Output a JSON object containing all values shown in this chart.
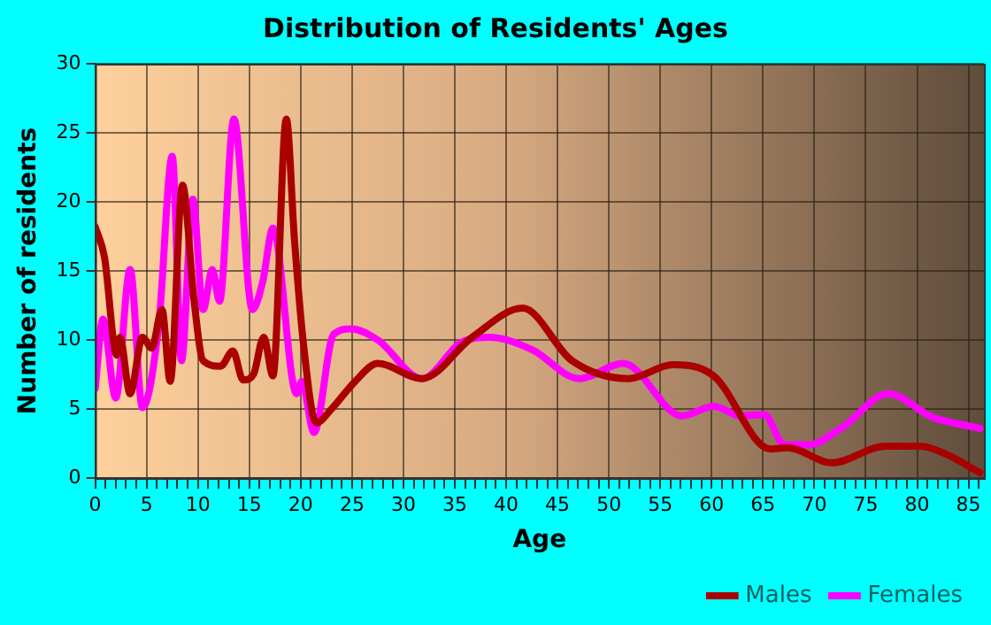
{
  "chart_data": {
    "type": "line",
    "title": "Distribution of Residents' Ages",
    "xlabel": "Age",
    "ylabel": "Number of residents",
    "xlim": [
      0,
      86.5
    ],
    "ylim": [
      0,
      30
    ],
    "xticks": [
      0,
      {
        "value": 1,
        "label": null
      },
      {
        "value": 2,
        "label": null
      },
      {
        "value": 3,
        "label": null
      },
      {
        "value": 4,
        "label": null
      },
      5,
      {
        "value": 6,
        "label": null
      },
      {
        "value": 7,
        "label": null
      },
      {
        "value": 8,
        "label": null
      },
      {
        "value": 9,
        "label": null
      },
      10,
      {
        "value": 11,
        "label": null
      },
      {
        "value": 12,
        "label": null
      },
      {
        "value": 13,
        "label": null
      },
      {
        "value": 14,
        "label": null
      },
      15,
      {
        "value": 16,
        "label": null
      },
      {
        "value": 17,
        "label": null
      },
      {
        "value": 18,
        "label": null
      },
      {
        "value": 19,
        "label": null
      },
      20,
      {
        "value": 21,
        "label": null
      },
      {
        "value": 22,
        "label": null
      },
      {
        "value": 23,
        "label": null
      },
      {
        "value": 24,
        "label": null
      },
      25,
      {
        "value": 26,
        "label": null
      },
      {
        "value": 27,
        "label": null
      },
      {
        "value": 28,
        "label": null
      },
      {
        "value": 29,
        "label": null
      },
      30,
      {
        "value": 31,
        "label": null
      },
      {
        "value": 32,
        "label": null
      },
      {
        "value": 33,
        "label": null
      },
      {
        "value": 34,
        "label": null
      },
      35,
      {
        "value": 36,
        "label": null
      },
      {
        "value": 37,
        "label": null
      },
      {
        "value": 38,
        "label": null
      },
      {
        "value": 39,
        "label": null
      },
      40,
      {
        "value": 41,
        "label": null
      },
      {
        "value": 42,
        "label": null
      },
      {
        "value": 43,
        "label": null
      },
      {
        "value": 44,
        "label": null
      },
      45,
      {
        "value": 46,
        "label": null
      },
      {
        "value": 47,
        "label": null
      },
      {
        "value": 48,
        "label": null
      },
      {
        "value": 49,
        "label": null
      },
      50,
      {
        "value": 51,
        "label": null
      },
      {
        "value": 52,
        "label": null
      },
      {
        "value": 53,
        "label": null
      },
      {
        "value": 54,
        "label": null
      },
      55,
      {
        "value": 56,
        "label": null
      },
      {
        "value": 57,
        "label": null
      },
      {
        "value": 58,
        "label": null
      },
      {
        "value": 59,
        "label": null
      },
      60,
      {
        "value": 61,
        "label": null
      },
      {
        "value": 62,
        "label": null
      },
      {
        "value": 63,
        "label": null
      },
      {
        "value": 64,
        "label": null
      },
      65,
      {
        "value": 66,
        "label": null
      },
      {
        "value": 67,
        "label": null
      },
      {
        "value": 68,
        "label": null
      },
      {
        "value": 69,
        "label": null
      },
      70,
      {
        "value": 71,
        "label": null
      },
      {
        "value": 72,
        "label": null
      },
      {
        "value": 73,
        "label": null
      },
      {
        "value": 74,
        "label": null
      },
      75,
      {
        "value": 76,
        "label": null
      },
      {
        "value": 77,
        "label": null
      },
      {
        "value": 78,
        "label": null
      },
      {
        "value": 79,
        "label": null
      },
      80,
      {
        "value": 81,
        "label": null
      },
      {
        "value": 82,
        "label": null
      },
      {
        "value": 83,
        "label": null
      },
      {
        "value": 84,
        "label": null
      },
      85,
      {
        "value": 86,
        "label": null
      }
    ],
    "yticks": [
      0,
      5,
      10,
      15,
      20,
      25,
      30
    ],
    "grid": true,
    "legend": "bottom right",
    "marker": "none",
    "line_style": "solid",
    "series": [
      {
        "name": "Males",
        "color": "#aa0000",
        "x": [
          0,
          0.9,
          2.1,
          2.4,
          3.4,
          4.6,
          5.5,
          6.5,
          7.3,
          8.5,
          9.6,
          10.5,
          12.2,
          13.4,
          14.4,
          15.4,
          16.4,
          17.3,
          18.6,
          19.4,
          20.3,
          21.5,
          23,
          25.3,
          27.5,
          31.8,
          36.7,
          41.6,
          46.4,
          51.9,
          56.2,
          60.2,
          65.7,
          67.4,
          71.7,
          76.9,
          80.3,
          82.6,
          86.1
        ],
        "values": [
          18.2,
          16,
          8.9,
          10.2,
          6.1,
          10.2,
          9.4,
          12.2,
          7,
          21.2,
          13,
          8.5,
          8.1,
          9.2,
          7.1,
          7.5,
          10.2,
          7.4,
          26,
          17.2,
          9.5,
          4,
          5,
          7,
          8.3,
          7.2,
          10.2,
          12.3,
          8.5,
          7.2,
          8.2,
          7.4,
          2.1,
          2.2,
          1.1,
          2.3,
          2.3,
          1.8,
          0.4
        ]
      },
      {
        "name": "Females",
        "color": "#ff00ff",
        "x": [
          0,
          0.75,
          2,
          3.4,
          4.6,
          6.2,
          7.5,
          8.4,
          9.5,
          10.5,
          11.4,
          12.1,
          13.5,
          15.3,
          16.3,
          17.3,
          19.6,
          20.1,
          21.3,
          23.2,
          24.9,
          27.5,
          31.8,
          35.6,
          38.4,
          42.5,
          47.1,
          51.4,
          57.1,
          60.2,
          62.8,
          65.1,
          67.1,
          69.4,
          72.6,
          77.2,
          81.5,
          86.1
        ],
        "values": [
          6.5,
          11.5,
          5.8,
          15.1,
          5.1,
          11.2,
          23.3,
          8.5,
          20.2,
          12.2,
          15.1,
          12.8,
          26,
          12.2,
          14.2,
          18.1,
          6.1,
          7,
          3.3,
          10.4,
          10.8,
          10,
          7.2,
          9.8,
          10.2,
          9.3,
          7.2,
          8.3,
          4.5,
          5.2,
          4.5,
          4.6,
          2.4,
          2.4,
          3.6,
          6.1,
          4.4,
          3.6
        ]
      }
    ]
  }
}
